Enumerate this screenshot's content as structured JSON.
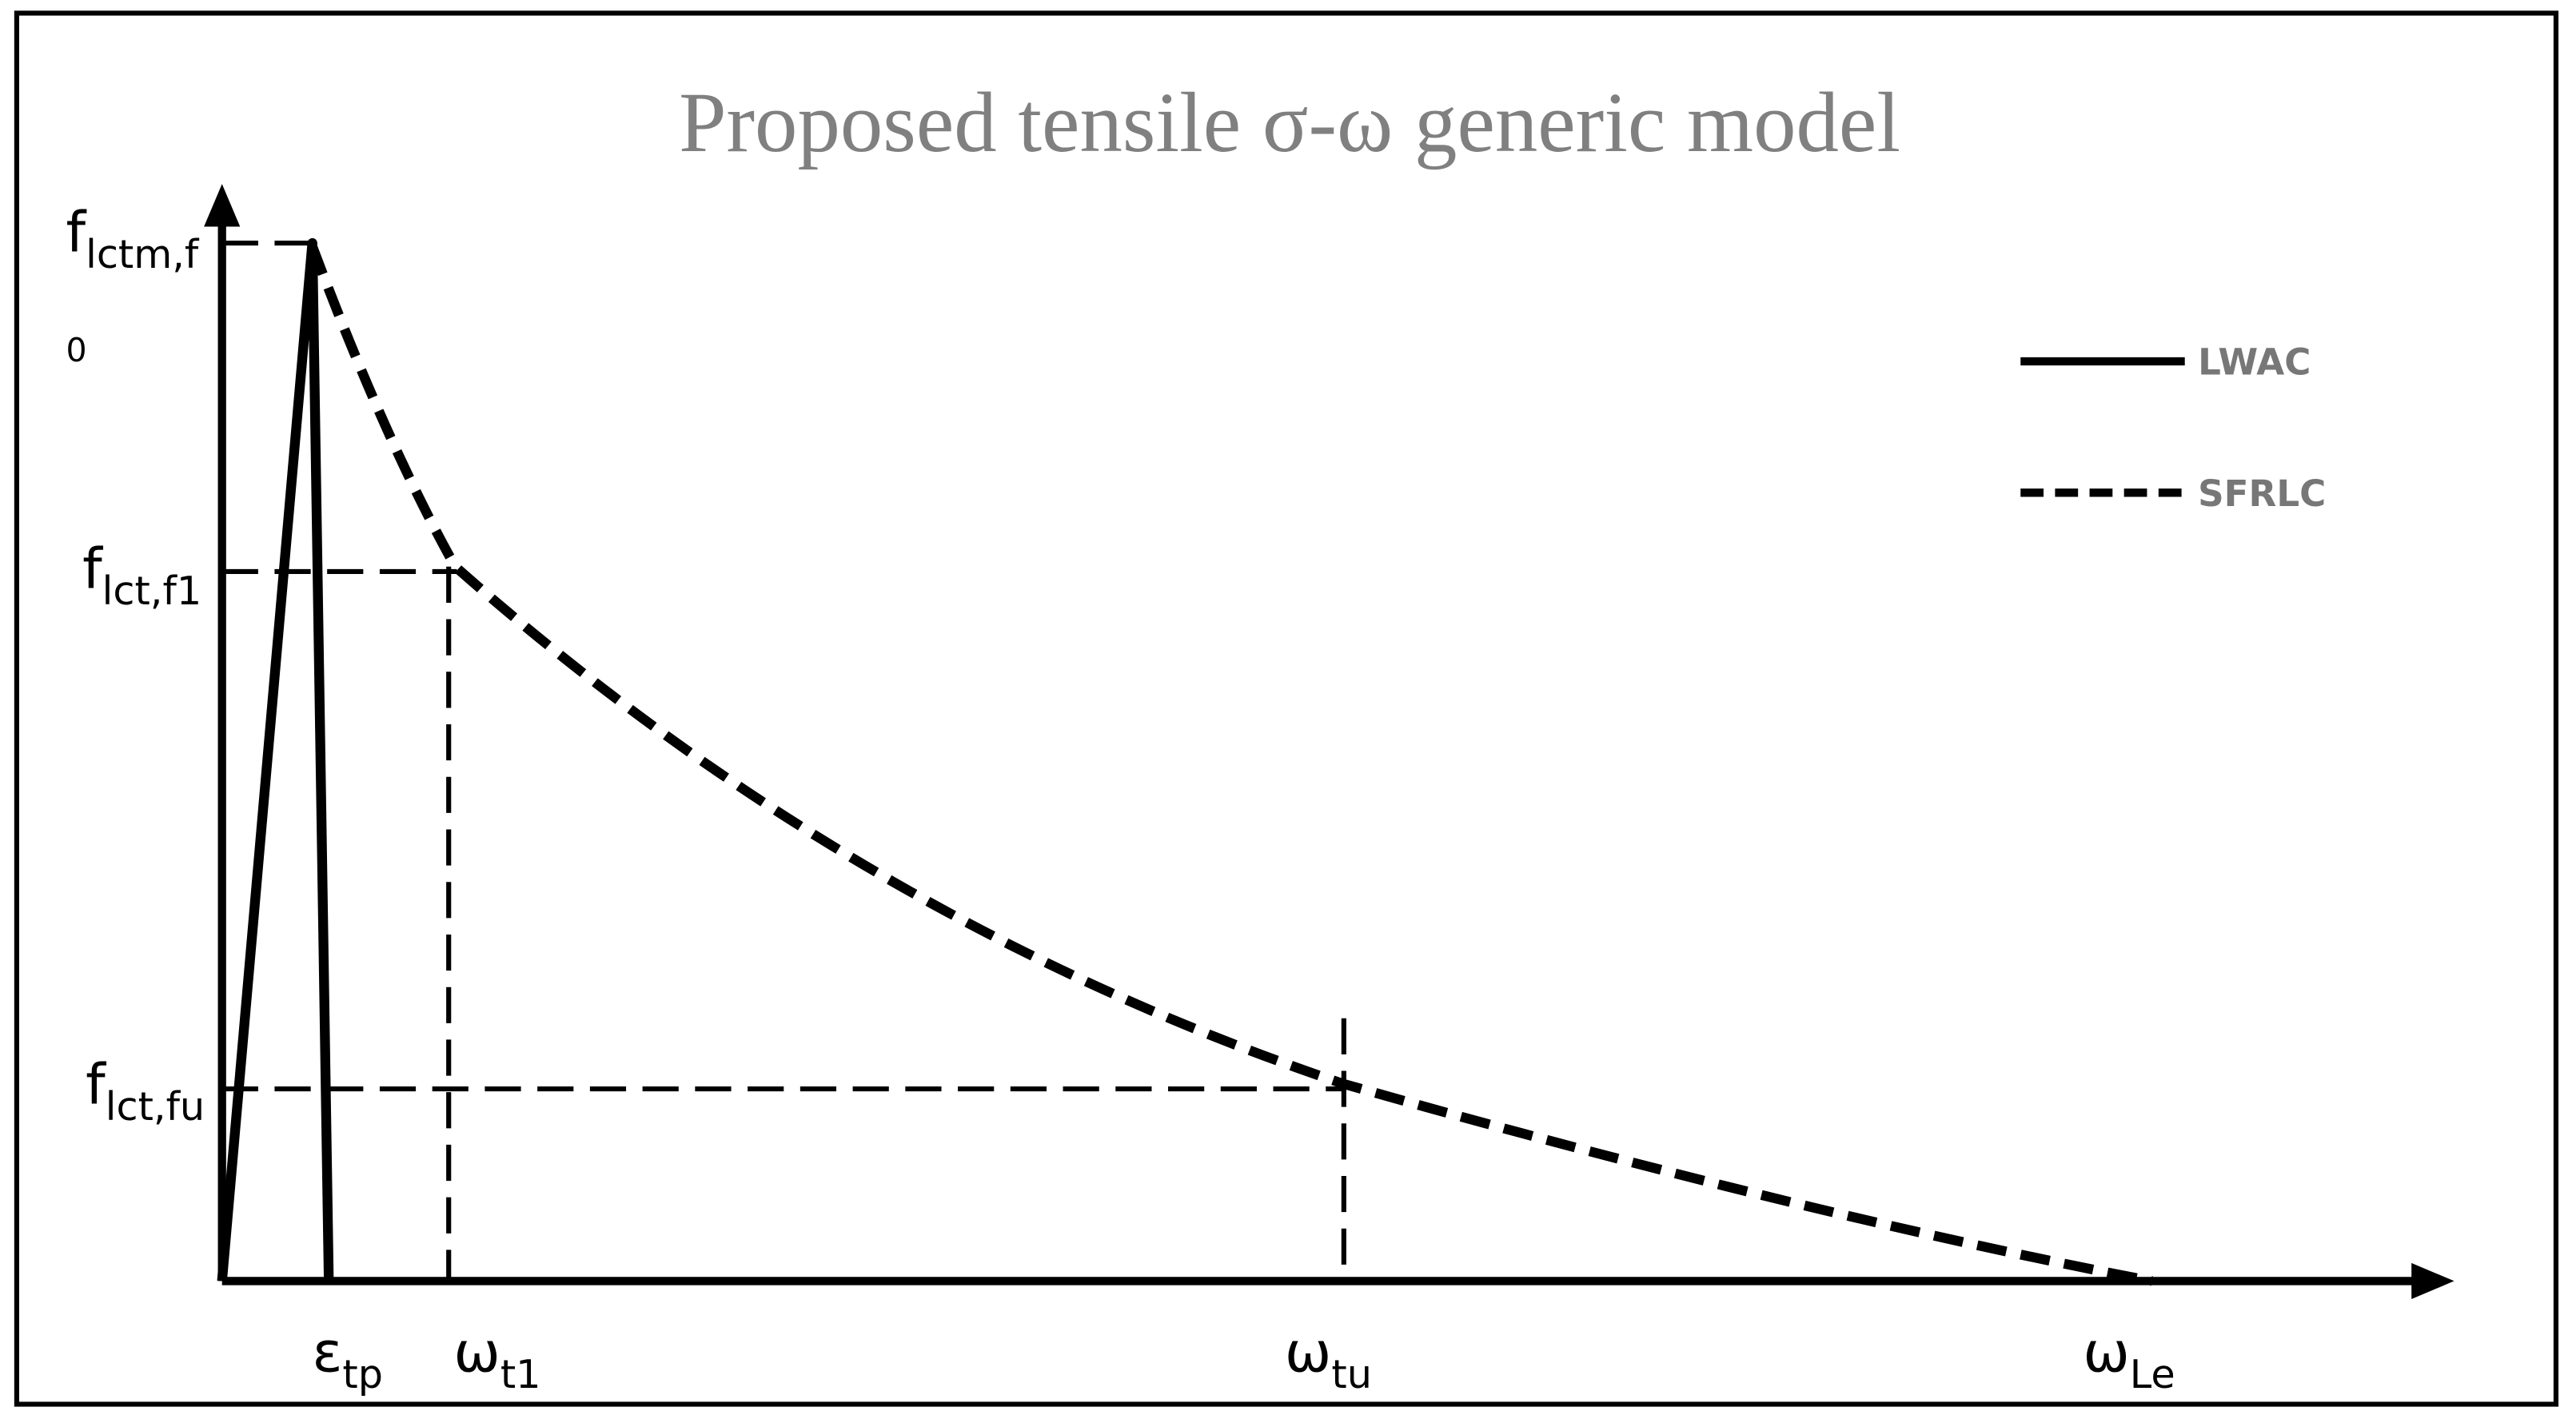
{
  "title": "Proposed tensile σ-ω generic model",
  "y_labels": [
    {
      "base": "f",
      "sub": "lctm,f"
    },
    {
      "base": "f",
      "sub": "lct,f1"
    },
    {
      "base": "f",
      "sub": "lct,fu"
    }
  ],
  "y_note": "0",
  "x_labels": [
    {
      "base": "ε",
      "sub": "tp"
    },
    {
      "base": "ω",
      "sub": "t1"
    },
    {
      "base": "ω",
      "sub": "tu"
    },
    {
      "base": "ω",
      "sub": "Le"
    }
  ],
  "legend": [
    {
      "label": "LWAC"
    },
    {
      "label": "SFRLC"
    }
  ]
}
